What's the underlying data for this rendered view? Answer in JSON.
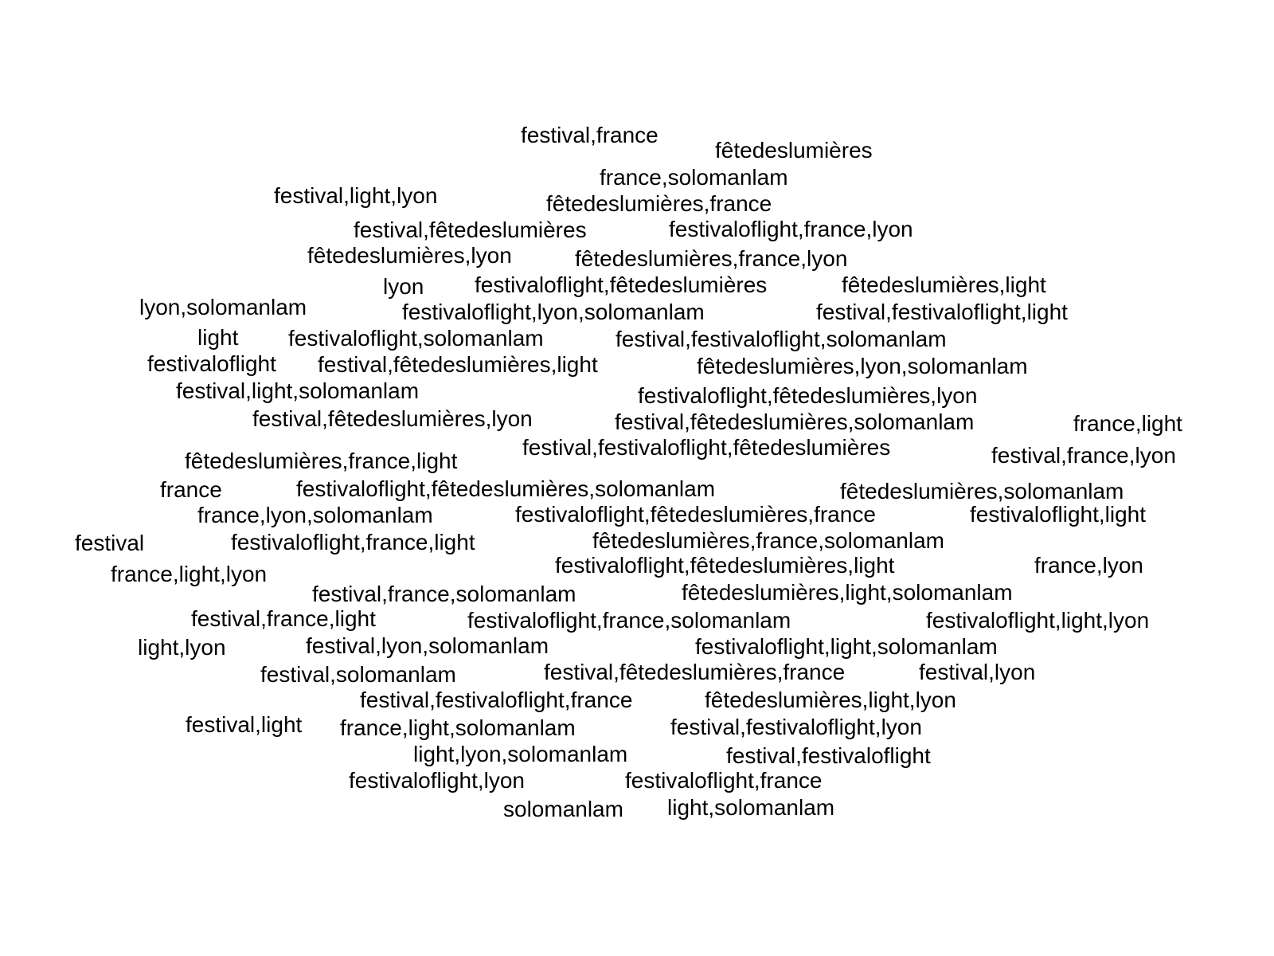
{
  "word_cloud": {
    "text_color": "#000000",
    "background_color": "#ffffff",
    "words": [
      "festival,france",
      "fêtedeslumières",
      "france,solomanlam",
      "festival,light,lyon",
      "fêtedeslumières,france",
      "festival,fêtedeslumières",
      "festivaloflight,france,lyon",
      "fêtedeslumières,lyon",
      "fêtedeslumières,france,lyon",
      "lyon",
      "festivaloflight,fêtedeslumières",
      "fêtedeslumières,light",
      "lyon,solomanlam",
      "festivaloflight,lyon,solomanlam",
      "festival,festivaloflight,light",
      "light",
      "festivaloflight,solomanlam",
      "festival,festivaloflight,solomanlam",
      "festivaloflight",
      "festival,fêtedeslumières,light",
      "fêtedeslumières,lyon,solomanlam",
      "festival,light,solomanlam",
      "festivaloflight,fêtedeslumières,lyon",
      "festival,fêtedeslumières,lyon",
      "festival,fêtedeslumières,solomanlam",
      "france,light",
      "festival,festivaloflight,fêtedeslumières",
      "fêtedeslumières,france,light",
      "festival,france,lyon",
      "france",
      "festivaloflight,fêtedeslumières,solomanlam",
      "fêtedeslumières,solomanlam",
      "france,lyon,solomanlam",
      "festivaloflight,fêtedeslumières,france",
      "festivaloflight,light",
      "festival",
      "festivaloflight,france,light",
      "fêtedeslumières,france,solomanlam",
      "festivaloflight,fêtedeslumières,light",
      "france,lyon",
      "france,light,lyon",
      "festival,france,solomanlam",
      "fêtedeslumières,light,solomanlam",
      "festival,france,light",
      "festivaloflight,france,solomanlam",
      "festivaloflight,light,lyon",
      "light,lyon",
      "festival,lyon,solomanlam",
      "festivaloflight,light,solomanlam",
      "festival,solomanlam",
      "festival,fêtedeslumières,france",
      "festival,lyon",
      "festival,festivaloflight,france",
      "fêtedeslumières,light,lyon",
      "festival,light",
      "france,light,solomanlam",
      "festival,festivaloflight,lyon",
      "light,lyon,solomanlam",
      "festival,festivaloflight",
      "festivaloflight,lyon",
      "festivaloflight,france",
      "solomanlam",
      "light,solomanlam"
    ]
  }
}
